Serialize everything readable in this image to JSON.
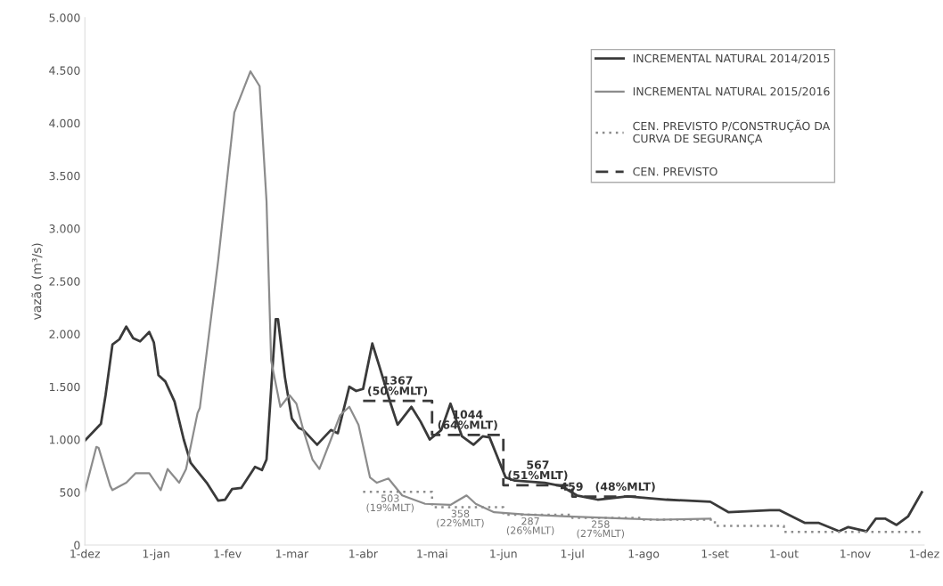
{
  "chart_data": {
    "type": "line",
    "ylabel": "vazão (m³/s)",
    "xlim": [
      "2014-12-01",
      "2015-12-01"
    ],
    "xticks": [
      {
        "value": "2014-12-01",
        "label": "1-dez"
      },
      {
        "value": "2015-01-01",
        "label": "1-jan"
      },
      {
        "value": "2015-02-01",
        "label": "1-fev"
      },
      {
        "value": "2015-03-01",
        "label": "1-mar"
      },
      {
        "value": "2015-04-01",
        "label": "1-abr"
      },
      {
        "value": "2015-05-01",
        "label": "1-mai"
      },
      {
        "value": "2015-06-01",
        "label": "1-jun"
      },
      {
        "value": "2015-07-01",
        "label": "1-jul"
      },
      {
        "value": "2015-08-01",
        "label": "1-ago"
      },
      {
        "value": "2015-09-01",
        "label": "1-set"
      },
      {
        "value": "2015-10-01",
        "label": "1-out"
      },
      {
        "value": "2015-11-01",
        "label": "1-nov"
      },
      {
        "value": "2015-12-01",
        "label": "1-dez"
      }
    ],
    "ylim": [
      0,
      5000
    ],
    "yticks": [
      {
        "value": 0,
        "label": "0"
      },
      {
        "value": 500,
        "label": "500"
      },
      {
        "value": 1000,
        "label": "1.000"
      },
      {
        "value": 1500,
        "label": "1.500"
      },
      {
        "value": 2000,
        "label": "2.000"
      },
      {
        "value": 2500,
        "label": "2.500"
      },
      {
        "value": 3000,
        "label": "3.000"
      },
      {
        "value": 3500,
        "label": "3.500"
      },
      {
        "value": 4000,
        "label": "4.000"
      },
      {
        "value": 4500,
        "label": "4.500"
      },
      {
        "value": 5000,
        "label": "5.000"
      }
    ],
    "grid": false,
    "legend": "top right",
    "series": [
      {
        "name": "INCREMENTAL NATURAL 2014/2015",
        "color": "#3a3a3a",
        "line_style": "solid",
        "x": [
          "2014-12-01",
          "2014-12-08",
          "2014-12-10",
          "2014-12-13",
          "2014-12-16",
          "2014-12-19",
          "2014-12-22",
          "2014-12-25",
          "2014-12-29",
          "2014-12-31",
          "2015-01-02",
          "2015-01-05",
          "2015-01-09",
          "2015-01-13",
          "2015-01-16",
          "2015-01-23",
          "2015-01-28",
          "2015-01-31",
          "2015-02-03",
          "2015-02-07",
          "2015-02-13",
          "2015-02-16",
          "2015-02-18",
          "2015-02-22",
          "2015-02-23",
          "2015-02-26",
          "2015-03-01",
          "2015-03-04",
          "2015-03-06",
          "2015-03-12",
          "2015-03-18",
          "2015-03-21",
          "2015-03-26",
          "2015-03-29",
          "2015-04-01",
          "2015-04-05",
          "2015-04-08",
          "2015-04-13",
          "2015-04-16",
          "2015-04-22",
          "2015-04-26",
          "2015-04-30",
          "2015-05-05",
          "2015-05-09",
          "2015-05-14",
          "2015-05-19",
          "2015-05-23",
          "2015-05-26",
          "2015-06-02",
          "2015-06-06",
          "2015-06-19",
          "2015-06-26",
          "2015-07-03",
          "2015-07-12",
          "2015-07-25",
          "2015-08-11",
          "2015-08-30",
          "2015-09-07",
          "2015-09-15",
          "2015-09-25",
          "2015-09-29",
          "2015-10-10",
          "2015-10-16",
          "2015-10-25",
          "2015-10-29",
          "2015-11-06",
          "2015-11-10",
          "2015-11-14",
          "2015-11-19",
          "2015-11-24",
          "2015-11-30"
        ],
        "values": [
          990,
          1150,
          1420,
          1900,
          1950,
          2070,
          1960,
          1930,
          2020,
          1920,
          1610,
          1550,
          1360,
          1000,
          780,
          590,
          420,
          430,
          530,
          540,
          740,
          710,
          810,
          2140,
          2140,
          1590,
          1200,
          1110,
          1090,
          950,
          1090,
          1060,
          1500,
          1460,
          1480,
          1910,
          1700,
          1340,
          1140,
          1310,
          1170,
          1000,
          1090,
          1340,
          1030,
          950,
          1030,
          1020,
          640,
          610,
          590,
          560,
          470,
          430,
          460,
          430,
          410,
          310,
          320,
          330,
          330,
          210,
          210,
          130,
          170,
          130,
          250,
          250,
          190,
          270,
          500
        ]
      },
      {
        "name": "INCREMENTAL NATURAL 2015/2016",
        "color": "#8c8c8c",
        "line_style": "solid",
        "x": [
          "2014-12-01",
          "2014-12-06",
          "2014-12-07",
          "2014-12-12",
          "2014-12-13",
          "2014-12-19",
          "2014-12-23",
          "2014-12-29",
          "2015-01-03",
          "2015-01-06",
          "2015-01-11",
          "2015-01-14",
          "2015-01-19",
          "2015-01-20",
          "2015-01-28",
          "2015-02-04",
          "2015-02-11",
          "2015-02-15",
          "2015-02-18",
          "2015-02-20",
          "2015-02-24",
          "2015-02-28",
          "2015-03-03",
          "2015-03-06",
          "2015-03-10",
          "2015-03-13",
          "2015-03-18",
          "2015-03-22",
          "2015-03-26",
          "2015-03-30",
          "2015-04-04",
          "2015-04-07",
          "2015-04-12",
          "2015-04-18",
          "2015-04-28",
          "2015-05-09",
          "2015-05-16",
          "2015-05-20",
          "2015-05-28",
          "2015-06-10",
          "2015-06-29",
          "2015-07-25",
          "2015-08-07",
          "2015-08-30"
        ],
        "values": [
          510,
          930,
          920,
          560,
          520,
          590,
          680,
          680,
          520,
          720,
          590,
          720,
          1250,
          1300,
          2700,
          4100,
          4490,
          4350,
          3260,
          1750,
          1310,
          1420,
          1340,
          1090,
          810,
          720,
          1000,
          1230,
          1310,
          1140,
          640,
          590,
          630,
          470,
          390,
          380,
          470,
          390,
          310,
          290,
          270,
          250,
          240,
          250
        ]
      },
      {
        "name": "CEN. PREVISTO P/CONSTRUÇÃO DA\nCURVA DE SEGURANÇA",
        "color": "#8c8c8c",
        "line_style": "dotted",
        "x": [
          "2015-04-01",
          "2015-05-01",
          "2015-05-01",
          "2015-06-01",
          "2015-06-01",
          "2015-07-01",
          "2015-07-01",
          "2015-08-01",
          "2015-08-01",
          "2015-09-01",
          "2015-09-01",
          "2015-10-01",
          "2015-10-01",
          "2015-11-30"
        ],
        "values": [
          503,
          503,
          358,
          358,
          287,
          287,
          258,
          258,
          240,
          240,
          180,
          180,
          125,
          125
        ],
        "value_labels": [
          "503\n(19%MLT)",
          null,
          "358\n(22%MLT)",
          null,
          "287\n(26%MLT)",
          null,
          "258\n(27%MLT)",
          null,
          null,
          null,
          null,
          null,
          null,
          null
        ]
      },
      {
        "name": "CEN. PREVISTO",
        "color": "#3a3a3a",
        "line_style": "dashed",
        "x": [
          "2015-04-01",
          "2015-05-01",
          "2015-05-01",
          "2015-06-01",
          "2015-06-01",
          "2015-07-01",
          "2015-07-01",
          "2015-08-01"
        ],
        "values": [
          1367,
          1367,
          1044,
          1044,
          567,
          567,
          459,
          459
        ],
        "value_labels": [
          "1367\n(50%MLT)",
          null,
          "1044\n(64%MLT)",
          null,
          "567\n(51%MLT)",
          null,
          "459   (48%MLT)",
          null
        ]
      }
    ]
  }
}
